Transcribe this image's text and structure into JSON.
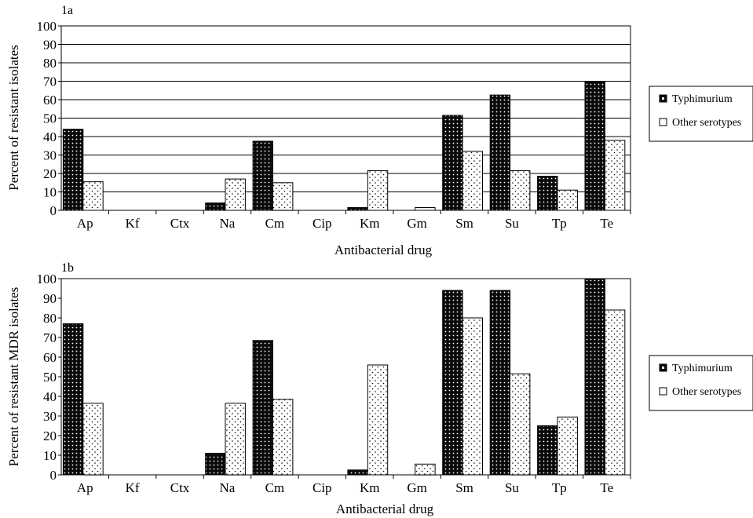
{
  "chart_data": [
    {
      "type": "bar",
      "panel_label": "1a",
      "xlabel": "Antibacterial drug",
      "ylabel": "Percent of resistant isolates",
      "ylim": [
        0,
        100
      ],
      "yticks": [
        0,
        10,
        20,
        30,
        40,
        50,
        60,
        70,
        80,
        90,
        100
      ],
      "grid": true,
      "legend_position": "right",
      "categories": [
        "Ap",
        "Kf",
        "Ctx",
        "Na",
        "Cm",
        "Cip",
        "Km",
        "Gm",
        "Sm",
        "Su",
        "Tp",
        "Te"
      ],
      "series": [
        {
          "name": "Typhimurium",
          "pattern": "dark-dotted",
          "values": [
            44,
            0,
            0,
            4,
            37.5,
            0,
            1.5,
            0,
            51.5,
            62.5,
            18.5,
            70
          ]
        },
        {
          "name": "Other serotypes",
          "pattern": "light-dotted",
          "values": [
            15.5,
            0,
            0,
            17,
            15,
            0,
            21.5,
            1.5,
            32,
            21.5,
            11,
            38
          ]
        }
      ]
    },
    {
      "type": "bar",
      "panel_label": "1b",
      "xlabel": "Antibacterial drug",
      "ylabel": "Percent of resistant MDR isolates",
      "ylim": [
        0,
        100
      ],
      "yticks": [
        0,
        10,
        20,
        30,
        40,
        50,
        60,
        70,
        80,
        90,
        100
      ],
      "grid": false,
      "legend_position": "right",
      "categories": [
        "Ap",
        "Kf",
        "Ctx",
        "Na",
        "Cm",
        "Cip",
        "Km",
        "Gm",
        "Sm",
        "Su",
        "Tp",
        "Te"
      ],
      "series": [
        {
          "name": "Typhimurium",
          "pattern": "dark-dotted",
          "values": [
            77,
            0,
            0,
            11,
            68.5,
            0,
            2.5,
            0,
            94,
            94,
            25,
            100
          ]
        },
        {
          "name": "Other serotypes",
          "pattern": "light-dotted",
          "values": [
            36.5,
            0,
            0,
            36.5,
            38.5,
            0,
            56,
            5.5,
            80,
            51.5,
            29.5,
            84
          ]
        }
      ]
    }
  ]
}
